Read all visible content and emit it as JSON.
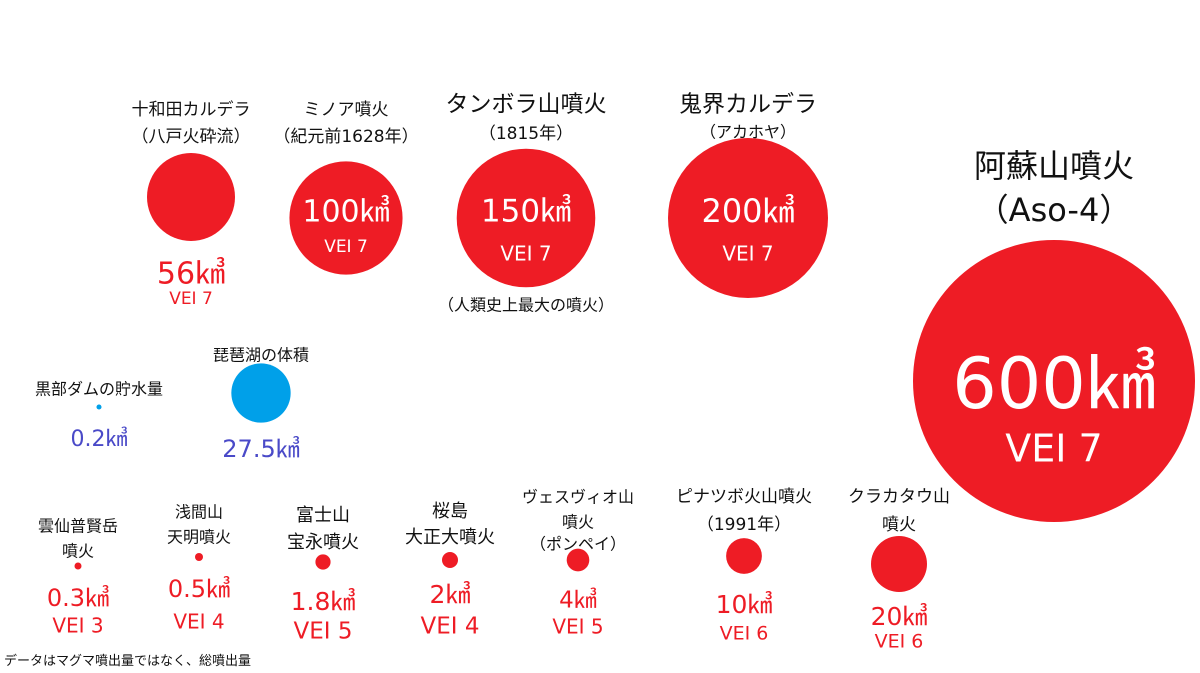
{
  "footnote": "データはマグマ噴出量ではなく、総噴出量",
  "colors": {
    "eruption": "#ee1c25",
    "water": "#00a0e9",
    "water_label": "#4a4ac8",
    "text": "#111111",
    "on_circle": "#ffffff"
  },
  "chart_data": {
    "type": "bubble",
    "unit": "㎦",
    "items": [
      {
        "id": "towada",
        "label": [
          "十和田カルデラ",
          "（八戸火砕流）"
        ],
        "volume": 56,
        "volume_text": "56㎦",
        "vei": "VEI 7",
        "kind": "eruption"
      },
      {
        "id": "minoa",
        "label": [
          "ミノア噴火",
          "（紀元前1628年）"
        ],
        "volume": 100,
        "volume_text": "100㎦",
        "vei": "VEI 7",
        "kind": "eruption"
      },
      {
        "id": "tambora",
        "label": [
          "タンボラ山噴火",
          "（1815年）"
        ],
        "volume": 150,
        "volume_text": "150㎦",
        "vei": "VEI 7",
        "note": "（人類史上最大の噴火）",
        "kind": "eruption"
      },
      {
        "id": "kikai",
        "label": [
          "鬼界カルデラ",
          "（アカホヤ）"
        ],
        "volume": 200,
        "volume_text": "200㎦",
        "vei": "VEI 7",
        "kind": "eruption"
      },
      {
        "id": "aso",
        "label": [
          "阿蘇山噴火",
          "（Aso-4）"
        ],
        "volume": 600,
        "volume_text": "600㎦",
        "vei": "VEI 7",
        "kind": "eruption"
      },
      {
        "id": "kurobe",
        "label": [
          "黒部ダムの貯水量"
        ],
        "volume": 0.2,
        "volume_text": "0.2㎦",
        "kind": "water"
      },
      {
        "id": "biwa",
        "label": [
          "琵琶湖の体積"
        ],
        "volume": 27.5,
        "volume_text": "27.5㎦",
        "kind": "water"
      },
      {
        "id": "unzen",
        "label": [
          "雲仙普賢岳",
          "噴火"
        ],
        "volume": 0.3,
        "volume_text": "0.3㎦",
        "vei": "VEI 3",
        "kind": "eruption"
      },
      {
        "id": "asama",
        "label": [
          "浅間山",
          "天明噴火"
        ],
        "volume": 0.5,
        "volume_text": "0.5㎦",
        "vei": "VEI 4",
        "kind": "eruption"
      },
      {
        "id": "fuji",
        "label": [
          "富士山",
          "宝永噴火"
        ],
        "volume": 1.8,
        "volume_text": "1.8㎦",
        "vei": "VEI 5",
        "kind": "eruption"
      },
      {
        "id": "sakurajima",
        "label": [
          "桜島",
          "大正大噴火"
        ],
        "volume": 2,
        "volume_text": "2㎦",
        "vei": "VEI 4",
        "kind": "eruption"
      },
      {
        "id": "vesuvius",
        "label": [
          "ヴェスヴィオ山",
          "噴火",
          "（ポンペイ）"
        ],
        "volume": 4,
        "volume_text": "4㎦",
        "vei": "VEI 5",
        "kind": "eruption"
      },
      {
        "id": "pinatubo",
        "label": [
          "ピナツボ火山噴火",
          "（1991年）"
        ],
        "volume": 10,
        "volume_text": "10㎦",
        "vei": "VEI 6",
        "kind": "eruption"
      },
      {
        "id": "krakatoa",
        "label": [
          "クラカタウ山",
          "噴火"
        ],
        "volume": 20,
        "volume_text": "20㎦",
        "vei": "VEI 6",
        "kind": "eruption"
      }
    ]
  }
}
